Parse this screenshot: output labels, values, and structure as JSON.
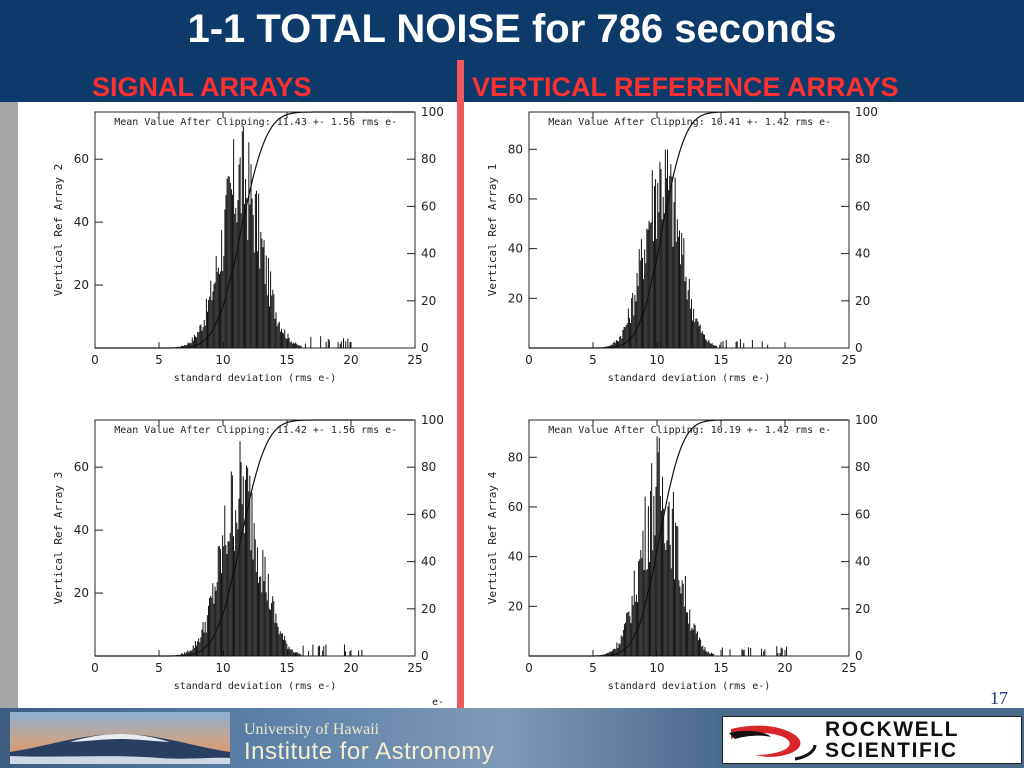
{
  "title": "1-1 TOTAL NOISE for 786 seconds",
  "subtitle_left": "SIGNAL ARRAYS",
  "subtitle_right": "VERTICAL REFERENCE ARRAYS",
  "page_number": "17",
  "bottom_label": "e-",
  "footer": {
    "uh_line1": "University of Hawaii",
    "uh_line2": "Institute for Astronomy",
    "rockwell_line1": "ROCKWELL",
    "rockwell_line2": "SCIENTIFIC"
  },
  "colors": {
    "header": "#0b3a6b",
    "subtitle": "#ff3030",
    "divider": "#f05a5a"
  },
  "chart_data": [
    {
      "type": "bar",
      "annotation": "Mean Value After Clipping: 11.43 +- 1.56 rms e-",
      "xlabel": "standard deviation (rms e-)",
      "ylabel": "Vertical Ref Array 2",
      "xlim": [
        0,
        25
      ],
      "ylim": [
        0,
        75
      ],
      "y2lim": [
        0,
        100
      ],
      "xticks": [
        0,
        5,
        10,
        15,
        20,
        25
      ],
      "yticks": [
        20,
        40,
        60
      ],
      "y2ticks": [
        0,
        20,
        40,
        60,
        80,
        100
      ],
      "histogram": {
        "mean": 11.43,
        "sigma": 1.56,
        "peak": 63,
        "tail_to": 20
      },
      "series": [
        {
          "values": []
        },
        {
          "cumulative_percent_max": 100
        }
      ]
    },
    {
      "type": "bar",
      "annotation": "Mean Value After Clipping: 10.41 +- 1.42 rms e-",
      "xlabel": "standard deviation (rms e-)",
      "ylabel": "Vertical Ref Array 1",
      "xlim": [
        0,
        25
      ],
      "ylim": [
        0,
        95
      ],
      "y2lim": [
        0,
        100
      ],
      "xticks": [
        0,
        5,
        10,
        15,
        20,
        25
      ],
      "yticks": [
        20,
        40,
        60,
        80
      ],
      "y2ticks": [
        0,
        20,
        40,
        60,
        80,
        100
      ],
      "histogram": {
        "mean": 10.41,
        "sigma": 1.42,
        "peak": 80,
        "tail_to": 19
      },
      "series": [
        {
          "values": []
        },
        {
          "cumulative_percent_max": 100
        }
      ]
    },
    {
      "type": "bar",
      "annotation": "Mean Value After Clipping: 11.42 +- 1.56 rms e-",
      "xlabel": "standard deviation (rms e-)",
      "ylabel": "Vertical Ref Array 3",
      "xlim": [
        0,
        25
      ],
      "ylim": [
        0,
        75
      ],
      "y2lim": [
        0,
        100
      ],
      "xticks": [
        0,
        5,
        10,
        15,
        20,
        25
      ],
      "yticks": [
        20,
        40,
        60
      ],
      "y2ticks": [
        0,
        20,
        40,
        60,
        80,
        100
      ],
      "histogram": {
        "mean": 11.42,
        "sigma": 1.56,
        "peak": 61,
        "tail_to": 21
      },
      "series": [
        {
          "values": []
        },
        {
          "cumulative_percent_max": 100
        }
      ]
    },
    {
      "type": "bar",
      "annotation": "Mean Value After Clipping: 10.19 +- 1.42 rms e-",
      "xlabel": "standard deviation (rms e-)",
      "ylabel": "Vertical Ref Array 4",
      "xlim": [
        0,
        25
      ],
      "ylim": [
        0,
        95
      ],
      "y2lim": [
        0,
        100
      ],
      "xticks": [
        0,
        5,
        10,
        15,
        20,
        25
      ],
      "yticks": [
        20,
        40,
        60,
        80
      ],
      "y2ticks": [
        0,
        20,
        40,
        60,
        80,
        100
      ],
      "histogram": {
        "mean": 10.19,
        "sigma": 1.42,
        "peak": 79,
        "tail_to": 21
      },
      "series": [
        {
          "values": []
        },
        {
          "cumulative_percent_max": 100
        }
      ]
    }
  ]
}
